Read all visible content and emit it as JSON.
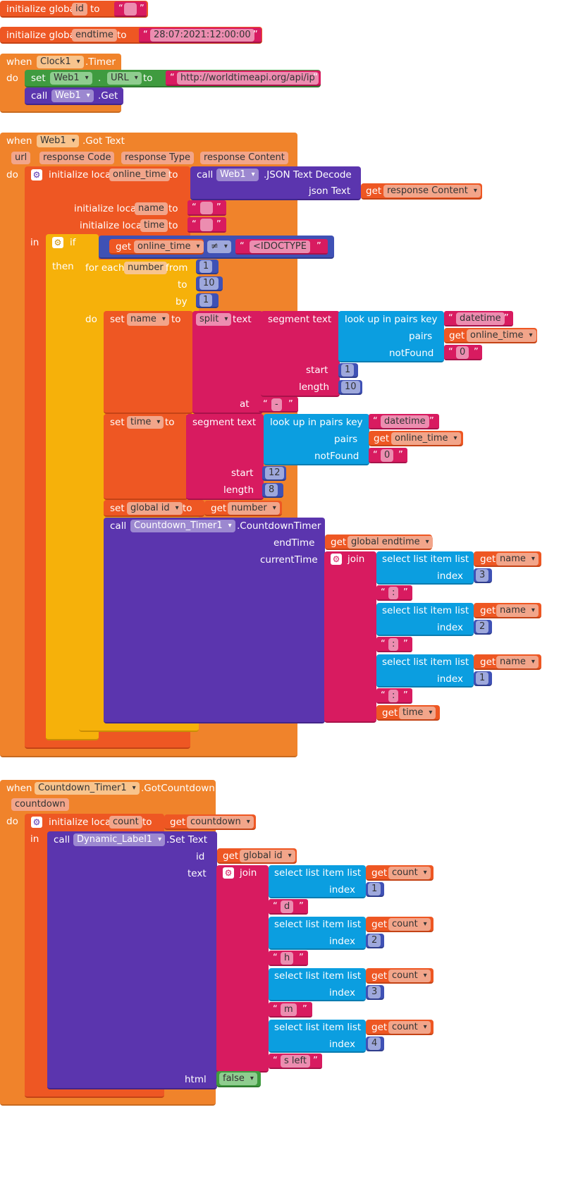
{
  "blocks": {
    "global_id": {
      "init": "initialize global",
      "name": "id",
      "to": "to",
      "value": ""
    },
    "global_endtime": {
      "init": "initialize global",
      "name": "endtime",
      "to": "to",
      "value": "28:07:2021:12:00:00"
    },
    "clock_timer": {
      "when": "when",
      "component": "Clock1",
      "event": ".Timer",
      "do": "do",
      "set": "set",
      "set_component": "Web1",
      "dot": ".",
      "set_property": "URL",
      "to": "to",
      "url_value": "http://worldtimeapi.org/api/ip",
      "call": "call",
      "call_component": "Web1",
      "call_method": ".Get"
    },
    "web_gottext": {
      "when": "when",
      "component": "Web1",
      "event": ".Got Text",
      "params": [
        "url",
        "response Code",
        "response Type",
        "response Content"
      ],
      "do": "do",
      "init_local": "initialize local",
      "var_online_time": "online_time",
      "to": "to",
      "call": "call",
      "decode_component": "Web1",
      "decode_method": ".JSON Text Decode",
      "json_text": "json Text",
      "get": "get",
      "response_content": "response Content",
      "var_name": "name",
      "var_time": "time",
      "empty": "",
      "in": "in",
      "if": "if",
      "neq": "≠",
      "doctype": "<IDOCTYPE",
      "then": "then",
      "for_each": "for each",
      "loop_var": "number",
      "from": "from",
      "from_val": "1",
      "to_val": "10",
      "by": "by",
      "by_val": "1",
      "set": "set",
      "split": "split",
      "text": "text",
      "segment_text": "segment  text",
      "lookup": "look up in pairs  key",
      "key": "datetime",
      "pairs": "pairs",
      "not_found": "notFound",
      "nf_val": "0",
      "start": "start",
      "start1": "1",
      "length": "length",
      "length1": "10",
      "at": "at",
      "dash": "-",
      "start2": "12",
      "length2": "8",
      "set_global_id": "global id",
      "countdown_component": "Countdown_Timer1",
      "countdown_method": ".CountdownTimer",
      "end_time": "endTime",
      "global_endtime": "global endtime",
      "current_time": "currentTime",
      "join": "join",
      "select_item": "select list item  list",
      "index": "index",
      "idx3": "3",
      "idx2": "2",
      "idx1": "1",
      "colon": ":"
    },
    "got_countdown": {
      "when": "when",
      "component": "Countdown_Timer1",
      "event": ".GotCountdown",
      "param": "countdown",
      "do": "do",
      "init_local": "initialize local",
      "var_count": "count",
      "to": "to",
      "get": "get",
      "in": "in",
      "call": "call",
      "label_component": "Dynamic_Label1",
      "set_text": ".Set Text",
      "id": "id",
      "global_id": "global id",
      "text": "text",
      "join": "join",
      "select_item": "select list item  list",
      "index": "index",
      "i1": "1",
      "i2": "2",
      "i3": "3",
      "i4": "4",
      "d": "d",
      "h": "h",
      "m": "m",
      "s_left": "s left",
      "html": "html",
      "false": "false"
    }
  }
}
